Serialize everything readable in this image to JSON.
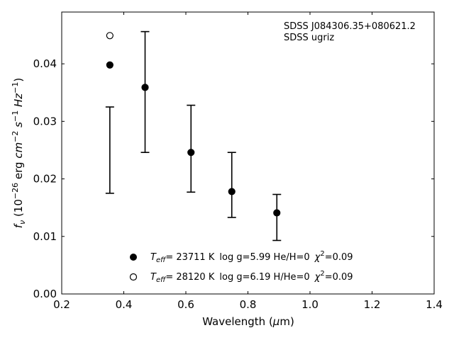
{
  "chart_data": {
    "type": "scatter",
    "title": "",
    "xlabel": "Wavelength (µm)",
    "ylabel": "f_ν (10^-26 erg cm^-2 s^-1 Hz^-1)",
    "xlim": [
      0.2,
      1.4
    ],
    "ylim": [
      0.0,
      0.049
    ],
    "x_ticks": [
      0.2,
      0.4,
      0.6,
      0.8,
      1.0,
      1.2,
      1.4
    ],
    "x_tick_labels": [
      "0.2",
      "0.4",
      "0.6",
      "0.8",
      "1.0",
      "1.2",
      "1.4"
    ],
    "y_ticks": [
      0.0,
      0.01,
      0.02,
      0.03,
      0.04
    ],
    "y_tick_labels": [
      "0.00",
      "0.01",
      "0.02",
      "0.03",
      "0.04"
    ],
    "grid": false,
    "annotation": {
      "line1": "SDSS J084306.35+080621.2",
      "line2": "SDSS ugriz"
    },
    "observed": {
      "x": [
        0.3551,
        0.4686,
        0.6166,
        0.748,
        0.8932
      ],
      "y_low": [
        0.0175,
        0.0246,
        0.0177,
        0.0133,
        0.0093
      ],
      "y_high": [
        0.0325,
        0.0456,
        0.0328,
        0.0246,
        0.0173
      ]
    },
    "series": [
      {
        "name": "Teff= 23711 K  log g=5.99  He/H=0  χ2=0.09",
        "marker": "filled-circle",
        "x": [
          0.3551,
          0.4686,
          0.6166,
          0.748,
          0.8932
        ],
        "y": [
          0.0398,
          0.0359,
          0.0246,
          0.0178,
          0.0141
        ]
      },
      {
        "name": "Teff= 28120 K  log g=6.19  H/He=0  χ2=0.09",
        "marker": "open-circle",
        "x": [
          0.3551
        ],
        "y": [
          0.0449
        ]
      }
    ],
    "legend": [
      {
        "temp": "= 23711 K",
        "rest": "log g=5.99  He/H=0",
        "chi": "=0.09",
        "marker": "filled-circle"
      },
      {
        "temp": "= 28120 K",
        "rest": "log g=6.19  H/He=0",
        "chi": "=0.09",
        "marker": "open-circle"
      }
    ],
    "legend_position": "bottom-center"
  }
}
